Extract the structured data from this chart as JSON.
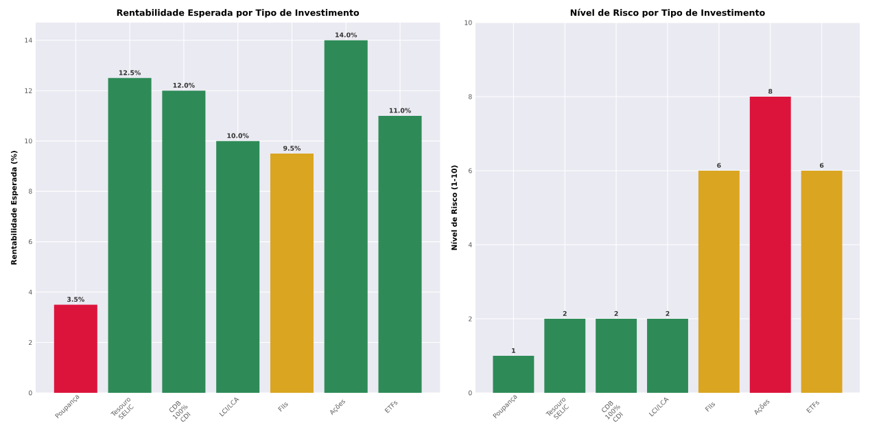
{
  "chart_data": [
    {
      "type": "bar",
      "title": "Rentabilidade Esperada por Tipo de Investimento",
      "ylabel": "Rentabilidade Esperada (%)",
      "categories": [
        "Poupança",
        "Tesouro SELIC",
        "CDB 100% CDI",
        "LCI/LCA",
        "FIIs",
        "Ações",
        "ETFs"
      ],
      "values": [
        3.5,
        12.5,
        12.0,
        10.0,
        9.5,
        14.0,
        11.0
      ],
      "value_labels": [
        "3.5%",
        "12.5%",
        "12.0%",
        "10.0%",
        "9.5%",
        "14.0%",
        "11.0%"
      ],
      "colors": [
        "#dc143c",
        "#2e8b57",
        "#2e8b57",
        "#2e8b57",
        "#daa520",
        "#2e8b57",
        "#2e8b57"
      ],
      "ylim": [
        0,
        14.7
      ],
      "yticks": [
        0,
        2,
        4,
        6,
        8,
        10,
        12,
        14
      ],
      "grid": true
    },
    {
      "type": "bar",
      "title": "Nível de Risco por Tipo de Investimento",
      "ylabel": "Nível de Risco (1-10)",
      "categories": [
        "Poupança",
        "Tesouro SELIC",
        "CDB 100% CDI",
        "LCI/LCA",
        "FIIs",
        "Ações",
        "ETFs"
      ],
      "values": [
        1,
        2,
        2,
        2,
        6,
        8,
        6
      ],
      "data_labels": true,
      "colors": [
        "#2e8b57",
        "#2e8b57",
        "#2e8b57",
        "#2e8b57",
        "#daa520",
        "#dc143c",
        "#daa520"
      ],
      "ylim": [
        0,
        10
      ],
      "yticks": [
        0,
        2,
        4,
        6,
        8,
        10
      ],
      "grid": true
    }
  ]
}
